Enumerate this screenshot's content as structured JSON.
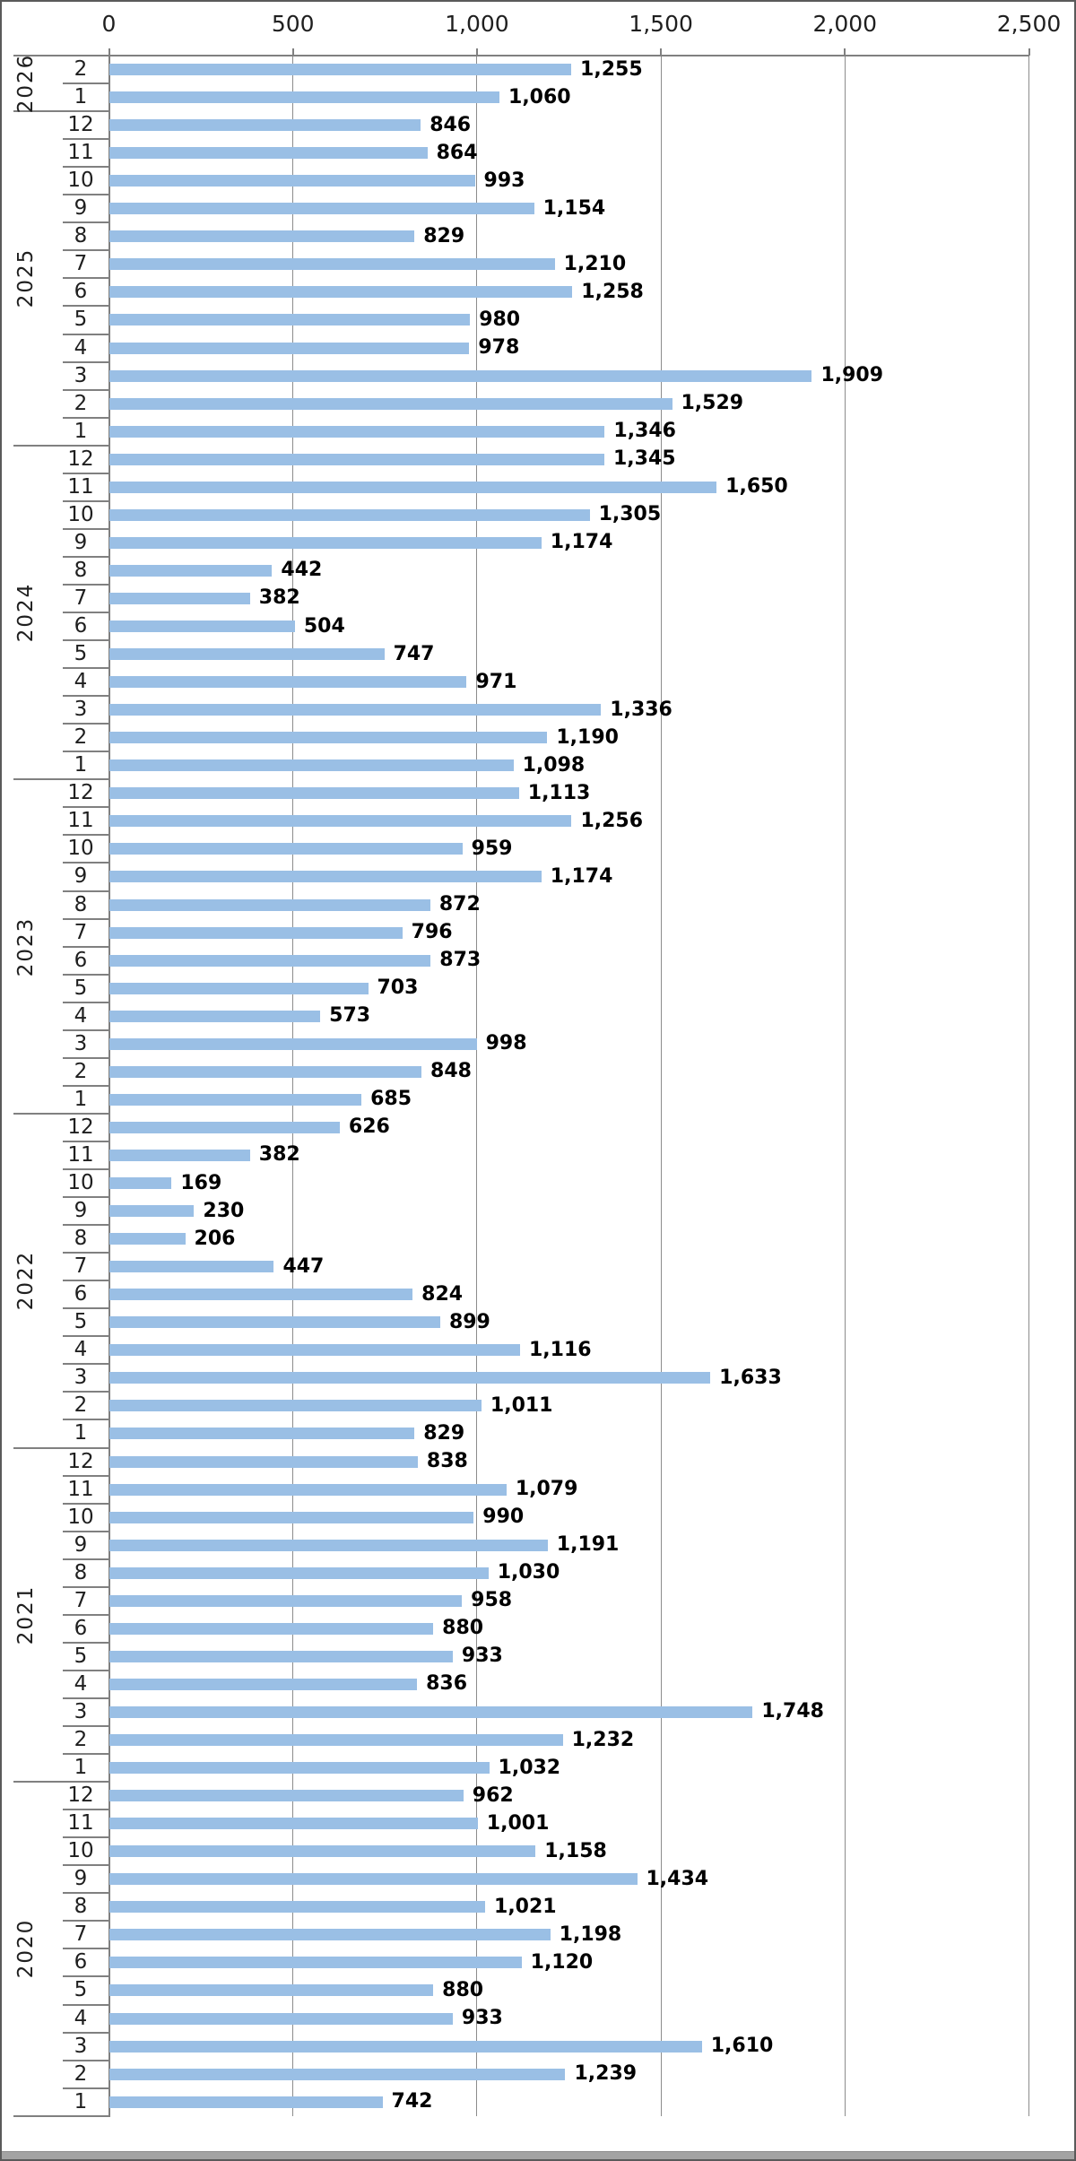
{
  "chart_data": {
    "type": "bar",
    "orientation": "horizontal",
    "title": "",
    "value_axis": {
      "position": "top",
      "ticks": [
        "0",
        "500",
        "1,000",
        "1,500",
        "2,000",
        "2,500"
      ],
      "tick_values": [
        0,
        500,
        1000,
        1500,
        2000,
        2500
      ],
      "range": [
        0,
        2500
      ],
      "grid": true
    },
    "category_axis": {
      "levels": [
        "month",
        "year"
      ],
      "order": "newest-first"
    },
    "groups": [
      {
        "year": "2026",
        "months": [
          {
            "month": "2",
            "value": 1255
          },
          {
            "month": "1",
            "value": 1060
          }
        ]
      },
      {
        "year": "2025",
        "months": [
          {
            "month": "12",
            "value": 846
          },
          {
            "month": "11",
            "value": 864
          },
          {
            "month": "10",
            "value": 993
          },
          {
            "month": "9",
            "value": 1154
          },
          {
            "month": "8",
            "value": 829
          },
          {
            "month": "7",
            "value": 1210
          },
          {
            "month": "6",
            "value": 1258
          },
          {
            "month": "5",
            "value": 980
          },
          {
            "month": "4",
            "value": 978
          },
          {
            "month": "3",
            "value": 1909
          },
          {
            "month": "2",
            "value": 1529
          },
          {
            "month": "1",
            "value": 1346
          }
        ]
      },
      {
        "year": "2024",
        "months": [
          {
            "month": "12",
            "value": 1345
          },
          {
            "month": "11",
            "value": 1650
          },
          {
            "month": "10",
            "value": 1305
          },
          {
            "month": "9",
            "value": 1174
          },
          {
            "month": "8",
            "value": 442
          },
          {
            "month": "7",
            "value": 382
          },
          {
            "month": "6",
            "value": 504
          },
          {
            "month": "5",
            "value": 747
          },
          {
            "month": "4",
            "value": 971
          },
          {
            "month": "3",
            "value": 1336
          },
          {
            "month": "2",
            "value": 1190
          },
          {
            "month": "1",
            "value": 1098
          }
        ]
      },
      {
        "year": "2023",
        "months": [
          {
            "month": "12",
            "value": 1113
          },
          {
            "month": "11",
            "value": 1256
          },
          {
            "month": "10",
            "value": 959
          },
          {
            "month": "9",
            "value": 1174
          },
          {
            "month": "8",
            "value": 872
          },
          {
            "month": "7",
            "value": 796
          },
          {
            "month": "6",
            "value": 873
          },
          {
            "month": "5",
            "value": 703
          },
          {
            "month": "4",
            "value": 573
          },
          {
            "month": "3",
            "value": 998
          },
          {
            "month": "2",
            "value": 848
          },
          {
            "month": "1",
            "value": 685
          }
        ]
      },
      {
        "year": "2022",
        "months": [
          {
            "month": "12",
            "value": 626
          },
          {
            "month": "11",
            "value": 382
          },
          {
            "month": "10",
            "value": 169
          },
          {
            "month": "9",
            "value": 230
          },
          {
            "month": "8",
            "value": 206
          },
          {
            "month": "7",
            "value": 447
          },
          {
            "month": "6",
            "value": 824
          },
          {
            "month": "5",
            "value": 899
          },
          {
            "month": "4",
            "value": 1116
          },
          {
            "month": "3",
            "value": 1633
          },
          {
            "month": "2",
            "value": 1011
          },
          {
            "month": "1",
            "value": 829
          }
        ]
      },
      {
        "year": "2021",
        "months": [
          {
            "month": "12",
            "value": 838
          },
          {
            "month": "11",
            "value": 1079
          },
          {
            "month": "10",
            "value": 990
          },
          {
            "month": "9",
            "value": 1191
          },
          {
            "month": "8",
            "value": 1030
          },
          {
            "month": "7",
            "value": 958
          },
          {
            "month": "6",
            "value": 880
          },
          {
            "month": "5",
            "value": 933
          },
          {
            "month": "4",
            "value": 836
          },
          {
            "month": "3",
            "value": 1748
          },
          {
            "month": "2",
            "value": 1232
          },
          {
            "month": "1",
            "value": 1032
          }
        ]
      },
      {
        "year": "2020",
        "months": [
          {
            "month": "12",
            "value": 962
          },
          {
            "month": "11",
            "value": 1001
          },
          {
            "month": "10",
            "value": 1158
          },
          {
            "month": "9",
            "value": 1434
          },
          {
            "month": "8",
            "value": 1021
          },
          {
            "month": "7",
            "value": 1198
          },
          {
            "month": "6",
            "value": 1120
          },
          {
            "month": "5",
            "value": 880
          },
          {
            "month": "4",
            "value": 933
          },
          {
            "month": "3",
            "value": 1610
          },
          {
            "month": "2",
            "value": 1239
          },
          {
            "month": "1",
            "value": 742
          }
        ]
      }
    ],
    "colors": {
      "bar": "#9ABFE5",
      "gridline": "#8c8c8c",
      "axis_line": "#808080",
      "data_label": "#000000",
      "tick_label": "#1f1f1f",
      "window_border": "#5a5a5a",
      "window_bottom_edge": "#a3a3a3"
    },
    "legend": "none"
  }
}
